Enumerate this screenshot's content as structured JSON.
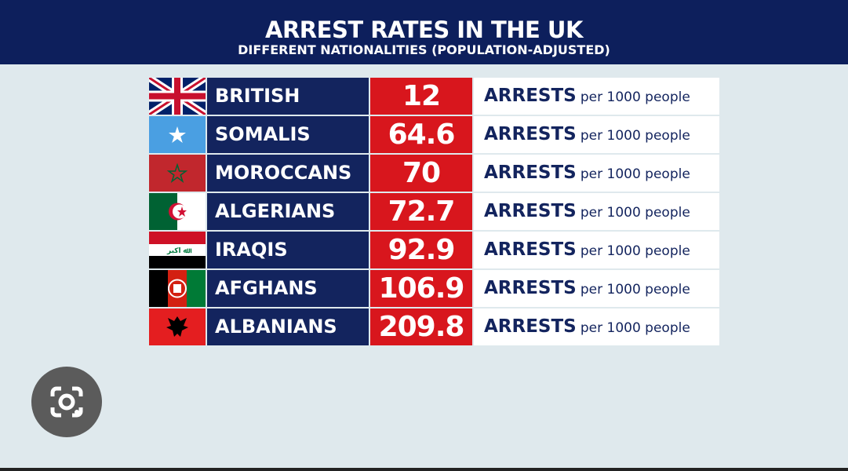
{
  "header": {
    "title": "ARREST RATES IN THE UK",
    "subtitle": "DIFFERENT NATIONALITIES (POPULATION-ADJUSTED)"
  },
  "table": {
    "rows": [
      {
        "name": "BRITISH",
        "rate": 12,
        "unit": "ARRESTS",
        "per": "per 1000 people"
      },
      {
        "name": "SOMALIS",
        "rate": 64.6,
        "unit": "ARRESTS",
        "per": "per 1000 people"
      },
      {
        "name": "MOROCCANS",
        "rate": 70,
        "unit": "ARRESTS",
        "per": "per 1000 people"
      },
      {
        "name": "ALGERIANS",
        "rate": 72.7,
        "unit": "ARRESTS",
        "per": "per 1000 people"
      },
      {
        "name": "IRAQIS",
        "rate": 92.9,
        "unit": "ARRESTS",
        "per": "per 1000 people"
      },
      {
        "name": "AFGHANS",
        "rate": 106.9,
        "unit": "ARRESTS",
        "per": "per 1000 people"
      },
      {
        "name": "ALBANIANS",
        "rate": 209.8,
        "unit": "ARRESTS",
        "per": "per 1000 people"
      }
    ]
  }
}
